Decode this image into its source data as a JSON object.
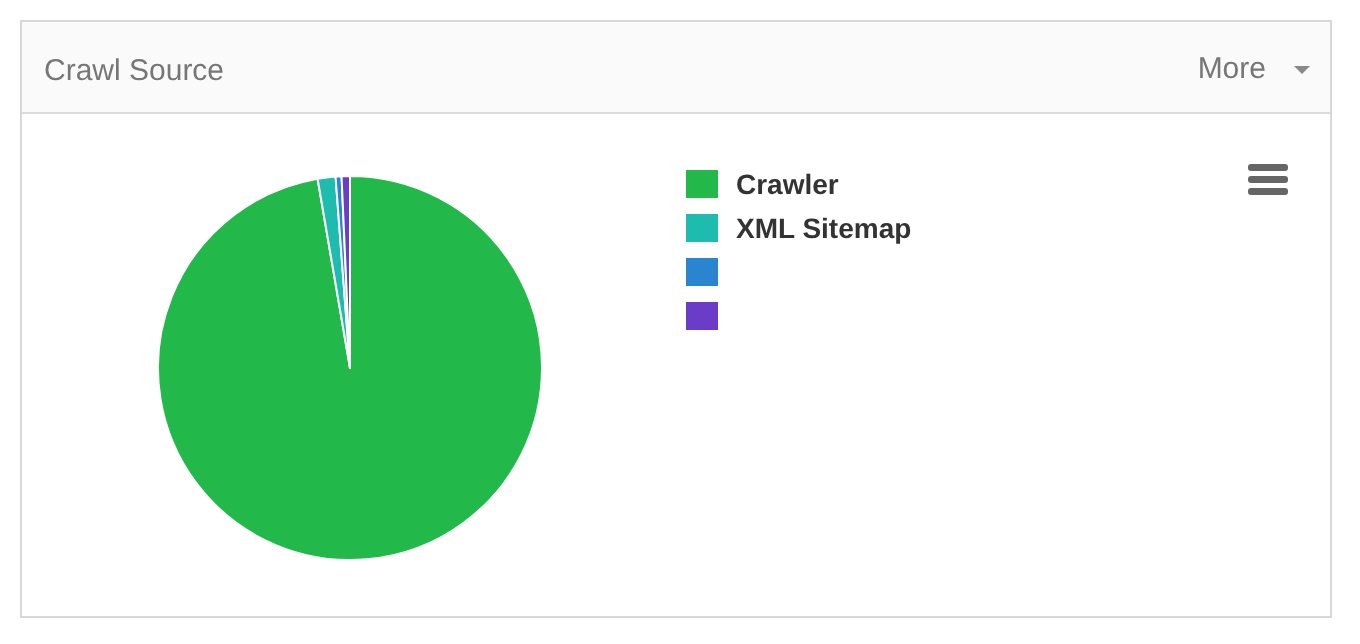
{
  "chart_data": {
    "type": "pie",
    "title": "Crawl Source",
    "annotations": [
      "More"
    ],
    "categories": [
      "Crawler",
      "XML Sitemap",
      null,
      null
    ],
    "values": [
      97.3,
      1.5,
      0.5,
      0.7
    ],
    "colors": [
      "#22b84a",
      "#1ebcae",
      "#2a85d0",
      "#6a3cc8"
    ],
    "legend": "right"
  }
}
